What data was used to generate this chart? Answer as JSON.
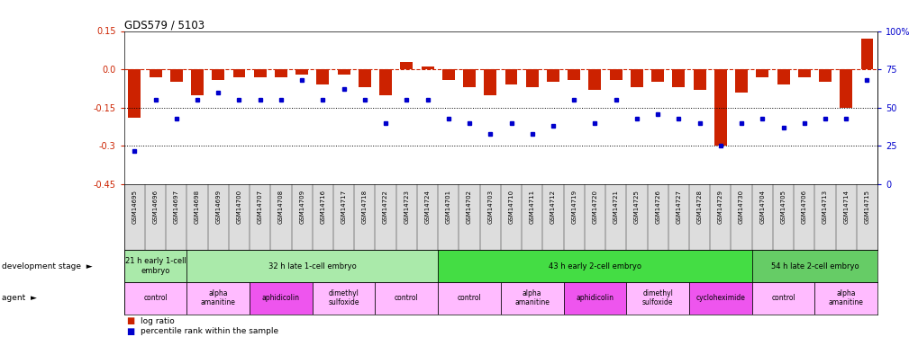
{
  "title": "GDS579 / 5103",
  "sample_ids": [
    "GSM14695",
    "GSM14696",
    "GSM14697",
    "GSM14698",
    "GSM14699",
    "GSM14700",
    "GSM14707",
    "GSM14708",
    "GSM14709",
    "GSM14716",
    "GSM14717",
    "GSM14718",
    "GSM14722",
    "GSM14723",
    "GSM14724",
    "GSM14701",
    "GSM14702",
    "GSM14703",
    "GSM14710",
    "GSM14711",
    "GSM14712",
    "GSM14719",
    "GSM14720",
    "GSM14721",
    "GSM14725",
    "GSM14726",
    "GSM14727",
    "GSM14728",
    "GSM14729",
    "GSM14730",
    "GSM14704",
    "GSM14705",
    "GSM14706",
    "GSM14713",
    "GSM14714",
    "GSM14715"
  ],
  "log_ratio": [
    -0.19,
    -0.03,
    -0.05,
    -0.1,
    -0.04,
    -0.03,
    -0.03,
    -0.03,
    -0.02,
    -0.06,
    -0.02,
    -0.07,
    -0.1,
    0.03,
    0.01,
    -0.04,
    -0.07,
    -0.1,
    -0.06,
    -0.07,
    -0.05,
    -0.04,
    -0.08,
    -0.04,
    -0.07,
    -0.05,
    -0.07,
    -0.08,
    -0.3,
    -0.09,
    -0.03,
    -0.06,
    -0.03,
    -0.05,
    -0.15,
    0.12
  ],
  "percentile_rank": [
    22,
    55,
    43,
    55,
    60,
    55,
    55,
    55,
    68,
    55,
    62,
    55,
    40,
    55,
    55,
    43,
    40,
    33,
    40,
    33,
    38,
    55,
    40,
    55,
    43,
    46,
    43,
    40,
    25,
    40,
    43,
    37,
    40,
    43,
    43,
    68
  ],
  "ylim_left": [
    -0.45,
    0.15
  ],
  "ylim_right": [
    0,
    100
  ],
  "yticks_left": [
    0.15,
    0.0,
    -0.15,
    -0.3,
    -0.45
  ],
  "yticks_right": [
    100,
    75,
    50,
    25,
    0
  ],
  "bar_color": "#CC2200",
  "dot_color": "#0000CC",
  "bg_color": "#FFFFFF",
  "tick_color_left": "#CC2200",
  "tick_color_right": "#0000CC",
  "zero_line_color": "#CC2200",
  "hlines": [
    -0.15,
    -0.3
  ],
  "dev_groups": [
    {
      "label": "21 h early 1-cell\nembryo",
      "start": 0,
      "end": 2,
      "color": "#AAEAAA"
    },
    {
      "label": "32 h late 1-cell embryo",
      "start": 3,
      "end": 14,
      "color": "#AAEAAA"
    },
    {
      "label": "43 h early 2-cell embryo",
      "start": 15,
      "end": 29,
      "color": "#44DD44"
    },
    {
      "label": "54 h late 2-cell embryo",
      "start": 30,
      "end": 35,
      "color": "#66CC66"
    }
  ],
  "agent_groups": [
    {
      "label": "control",
      "start": 0,
      "end": 2,
      "color": "#FFBBFF"
    },
    {
      "label": "alpha\namanitine",
      "start": 3,
      "end": 5,
      "color": "#FFBBFF"
    },
    {
      "label": "aphidicolin",
      "start": 6,
      "end": 8,
      "color": "#EE55EE"
    },
    {
      "label": "dimethyl\nsulfoxide",
      "start": 9,
      "end": 11,
      "color": "#FFBBFF"
    },
    {
      "label": "control",
      "start": 12,
      "end": 14,
      "color": "#FFBBFF"
    },
    {
      "label": "control",
      "start": 15,
      "end": 17,
      "color": "#FFBBFF"
    },
    {
      "label": "alpha\namanitine",
      "start": 18,
      "end": 20,
      "color": "#FFBBFF"
    },
    {
      "label": "aphidicolin",
      "start": 21,
      "end": 23,
      "color": "#EE55EE"
    },
    {
      "label": "dimethyl\nsulfoxide",
      "start": 24,
      "end": 26,
      "color": "#FFBBFF"
    },
    {
      "label": "cycloheximide",
      "start": 27,
      "end": 29,
      "color": "#EE55EE"
    },
    {
      "label": "control",
      "start": 30,
      "end": 32,
      "color": "#FFBBFF"
    },
    {
      "label": "alpha\namanitine",
      "start": 33,
      "end": 35,
      "color": "#FFBBFF"
    }
  ],
  "label_bg": "#DDDDDD",
  "arrow": "►"
}
